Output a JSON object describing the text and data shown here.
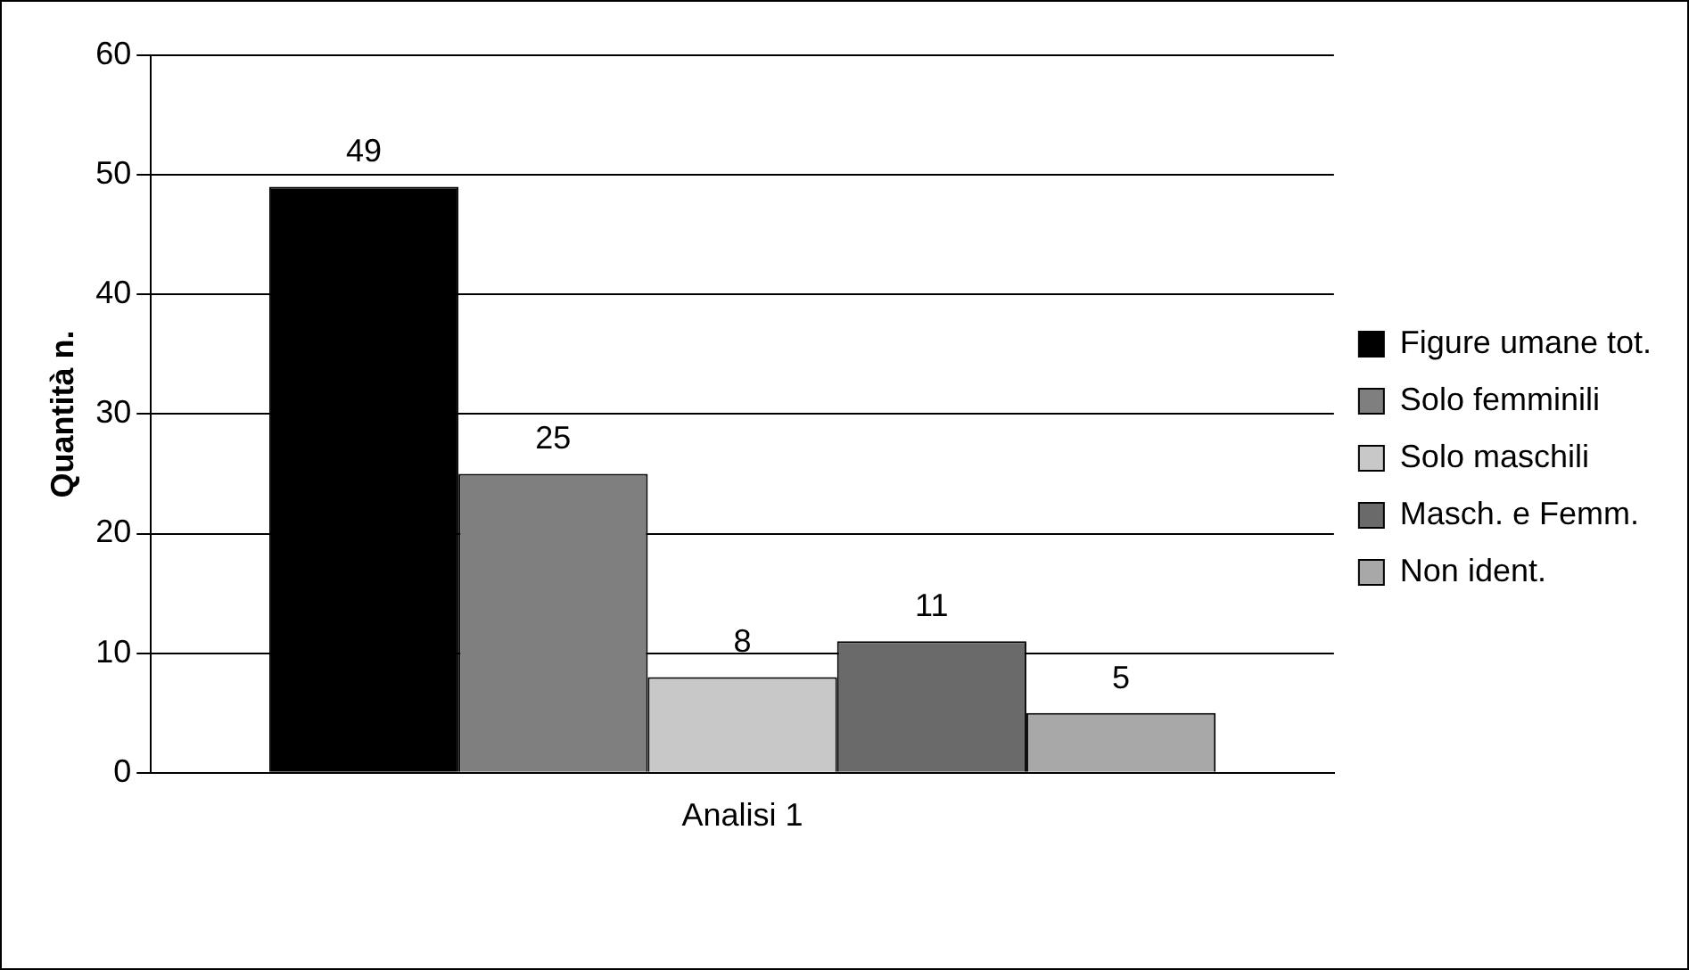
{
  "chart_data": {
    "type": "bar",
    "ylabel": "Quantità n.",
    "categories": [
      "Analisi 1"
    ],
    "series": [
      {
        "name": "Figure umane tot.",
        "color": "#000000",
        "values": [
          49
        ]
      },
      {
        "name": "Solo femminili",
        "color": "#7f7f7f",
        "values": [
          25
        ]
      },
      {
        "name": "Solo maschili",
        "color": "#c8c8c8",
        "values": [
          8
        ]
      },
      {
        "name": "Masch. e Femm.",
        "color": "#6a6a6a",
        "values": [
          11
        ]
      },
      {
        "name": "Non ident.",
        "color": "#a8a8a8",
        "values": [
          5
        ]
      }
    ],
    "ylim": [
      0,
      60
    ],
    "yticks": [
      0,
      10,
      20,
      30,
      40,
      50,
      60
    ],
    "grid": "y",
    "legend": "right",
    "data_labels": true
  }
}
